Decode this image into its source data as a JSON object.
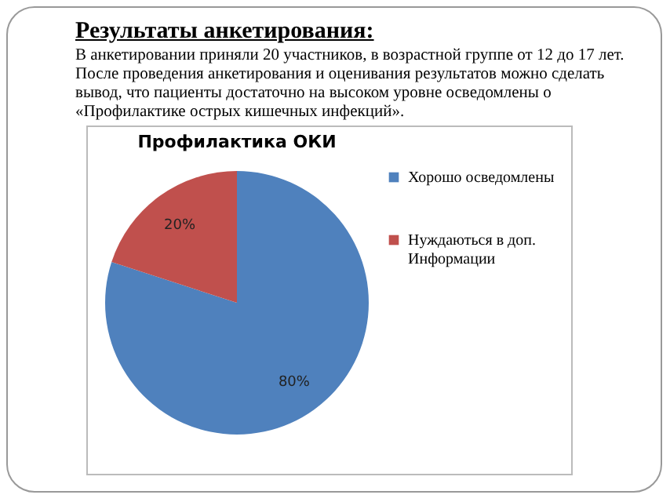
{
  "chart_data": {
    "type": "pie",
    "title": "Профилактика ОКИ",
    "annotations": [
      "Результаты анкетирования:",
      "В анкетировании приняли 20 участников, в возрастной группе от 12 до 17 лет. После проведения анкетирования и оценивания результатов можно сделать вывод, что пациенты достаточно на высоком уровне осведомлены о «Профилактике острых кишечных инфекций»."
    ],
    "categories": [
      "Хорошо осведомлены",
      "Нуждаються в доп. Информации"
    ],
    "values": [
      80,
      20
    ],
    "colors": [
      "#4f81bd",
      "#c0504d"
    ],
    "value_labels": [
      "80%",
      "20%"
    ],
    "legend": "right"
  }
}
